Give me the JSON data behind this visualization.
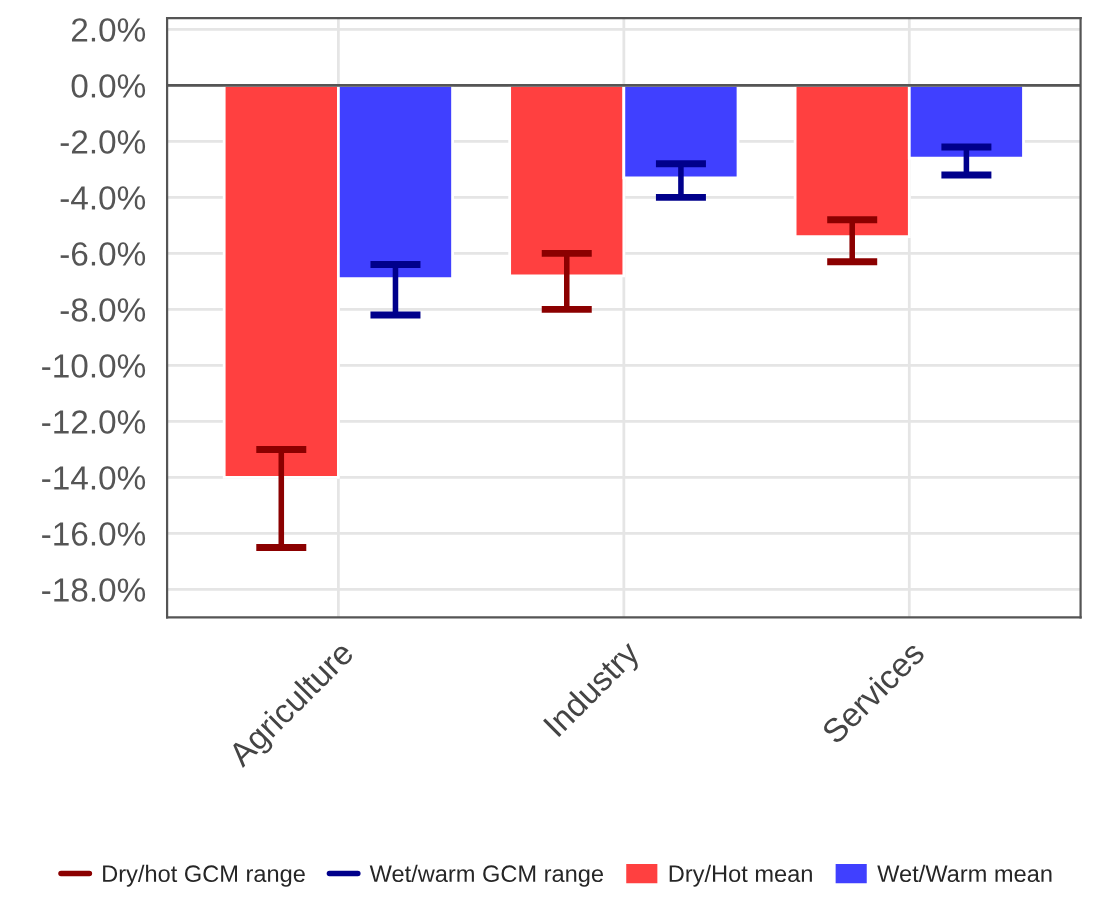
{
  "chart_data": {
    "type": "bar",
    "categories": [
      "Agriculture",
      "Industry",
      "Services"
    ],
    "series": [
      {
        "name": "Dry/hot GCM range",
        "type": "line",
        "color": "#8b0000",
        "values": [
          null,
          null,
          null
        ]
      },
      {
        "name": "Wet/warm GCM range",
        "type": "line",
        "color": "#00008b",
        "values": [
          null,
          null,
          null
        ]
      },
      {
        "name": "Dry/Hot mean",
        "color": "#ff4040",
        "values": [
          -14.0,
          -6.8,
          -5.4
        ],
        "errors": [
          [
            -16.5,
            -13.0
          ],
          [
            -8.0,
            -6.0
          ],
          [
            -6.3,
            -4.8
          ]
        ]
      },
      {
        "name": "Wet/Warm mean",
        "color": "#4040ff",
        "values": [
          -6.9,
          -3.3,
          -2.6
        ],
        "errors": [
          [
            -8.2,
            -6.4
          ],
          [
            -4.0,
            -2.8
          ],
          [
            -3.2,
            -2.2
          ]
        ]
      }
    ],
    "ylim": [
      -19,
      2.4
    ],
    "yticks": [
      {
        "value": 2,
        "label": "2.0%"
      },
      {
        "value": 0,
        "label": "0.0%"
      },
      {
        "value": -2,
        "label": "-2.0%"
      },
      {
        "value": -4,
        "label": "-4.0%"
      },
      {
        "value": -6,
        "label": "-6.0%"
      },
      {
        "value": -8,
        "label": "-8.0%"
      },
      {
        "value": -10,
        "label": "-10.0%"
      },
      {
        "value": -12,
        "label": "-12.0%"
      },
      {
        "value": -14,
        "label": "-14.0%"
      },
      {
        "value": -16,
        "label": "-16.0%"
      },
      {
        "value": -18,
        "label": "-18.0%"
      }
    ],
    "ref_lines": [
      {
        "axis": "y",
        "value": 0,
        "color": "#555555"
      }
    ],
    "grid": true,
    "legend": "bottom"
  }
}
